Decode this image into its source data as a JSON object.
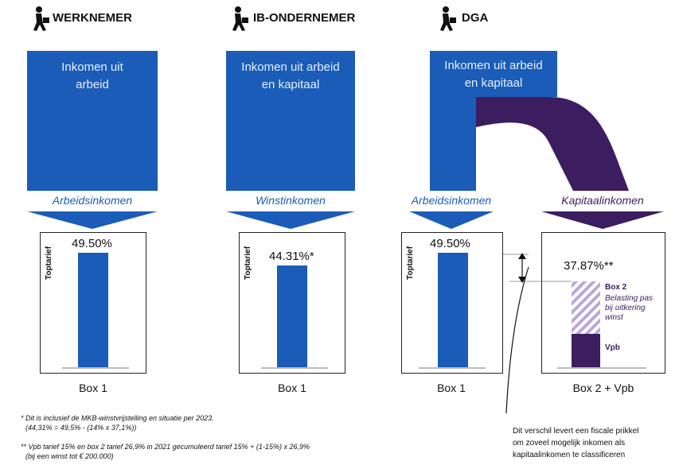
{
  "columns": [
    {
      "header": "WERKNEMER",
      "box_text": "Inkomen uit arbeid",
      "flow_label": "Arbeidsinkomen",
      "pct": "49.50%",
      "box_label": "Box 1",
      "axis": "Toptarief"
    },
    {
      "header": "IB-ONDERNEMER",
      "box_text": "Inkomen uit arbeid en kapitaal",
      "flow_label": "Winstinkomen",
      "pct": "44.31%*",
      "box_label": "Box 1",
      "axis": "Toptarief"
    },
    {
      "header": "DGA",
      "box_text": "Inkomen uit arbeid en kapitaal",
      "flow_label": "Arbeidsinkomen",
      "pct": "49.50%",
      "box_label": "Box 1",
      "axis": "Toptarief"
    }
  ],
  "dga_capital": {
    "flow_label": "Kapitaalinkomen",
    "pct": "37.87%**",
    "box2_label": "Box 2",
    "box2_desc": "Belasting pas bij uitkering winst",
    "vpb_label": "Vpb",
    "box_label": "Box 2 + Vpb"
  },
  "notes": {
    "n1_line1": "* Dit is inclusief de MKB-winstvrijstelling en situatie per 2023.",
    "n1_line2": "(44,31% = 49,5% - (14% x 37,1%))",
    "n2_line1": "** Vpb tarief 15% en box 2 tarief 26,9% in 2021 gecumuleerd tarief 15% + (1-15%) x 26,9%",
    "n2_line2": "(bij een winst tot € 200.000)"
  },
  "annotation": {
    "line1": "Dit verschil levert een fiscale prikkel",
    "line2": "om zoveel mogelijk inkomen als",
    "line3": "kapitaalinkomen te classificeren"
  },
  "colors": {
    "blue": "#1a5cb8",
    "purple": "#3b1d60",
    "hatch": "#b9a8d6"
  },
  "chart_data": {
    "type": "bar",
    "categories": [
      "Werknemer Box 1",
      "IB-ondernemer Box 1",
      "DGA Box 1",
      "DGA Box 2 + Vpb"
    ],
    "values": [
      49.5,
      44.31,
      49.5,
      37.87
    ],
    "ylabel": "Toptarief"
  }
}
